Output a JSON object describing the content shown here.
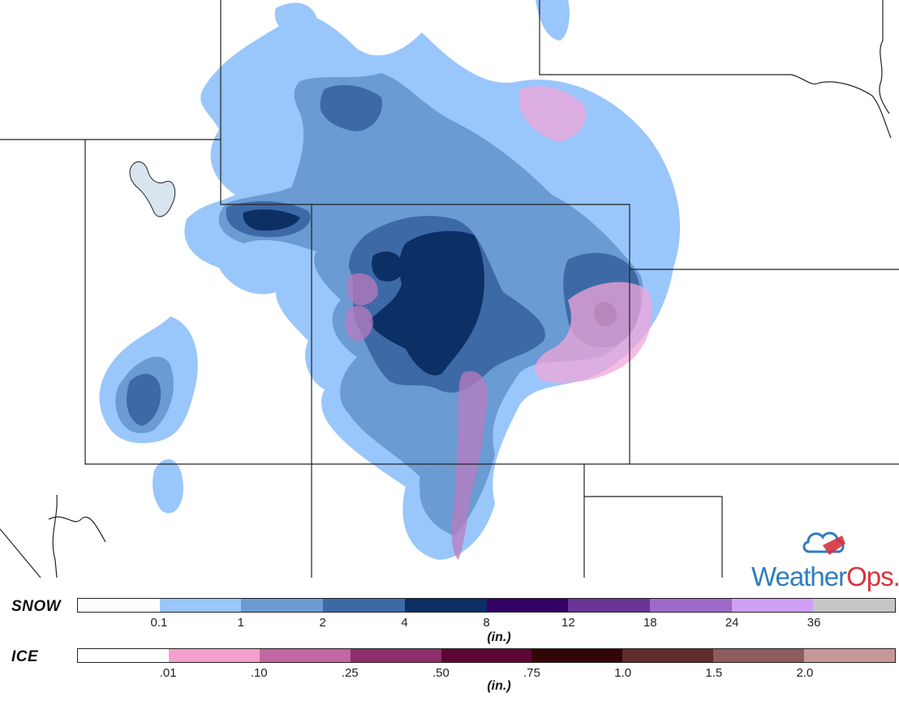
{
  "map": {
    "colors": {
      "snow_01": "#99c6fb",
      "snow_1": "#6a9bd2",
      "snow_2": "#3d6aa6",
      "snow_4": "#0c2f66",
      "ice_01": "#f3a6d9",
      "ice_10": "#b97bbf",
      "boundary": "#222222",
      "lake": "#d8e4ee"
    }
  },
  "logo": {
    "text_weather": "Weather",
    "text_ops": "Ops",
    "text_suffix": "."
  },
  "legend": {
    "snow": {
      "title": "SNOW",
      "unit": "(in.)",
      "colors": [
        "#ffffff",
        "#99c6fb",
        "#6a9bd2",
        "#3d6aa6",
        "#0c2f66",
        "#330066",
        "#6a3596",
        "#9e6ac9",
        "#cf9ff5",
        "#c6c6c6"
      ],
      "ticks": [
        "0.1",
        "1",
        "2",
        "4",
        "8",
        "12",
        "18",
        "24",
        "36"
      ]
    },
    "ice": {
      "title": "ICE",
      "unit": "(in.)",
      "colors": [
        "#ffffff",
        "#f39fd0",
        "#c267a2",
        "#8e2f6c",
        "#5e0538",
        "#320606",
        "#5f2c2c",
        "#8d5c5c",
        "#c79898"
      ],
      "ticks": [
        ".01",
        ".10",
        ".25",
        ".50",
        ".75",
        "1.0",
        "1.5",
        "2.0"
      ]
    }
  }
}
